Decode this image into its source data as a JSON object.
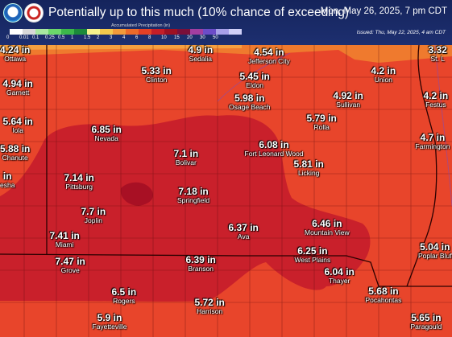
{
  "header": {
    "title": "Potentially up to this much (10% chance of exceeding)",
    "valid": "Mon, May 26, 2025, 7 pm CDT",
    "issued": "Issued: Thu, May 22, 2025, 4 am CDT",
    "logos": [
      "noaa-logo",
      "nws-logo"
    ]
  },
  "legend": {
    "title": "Accumulated Precipitation (in)",
    "colors": [
      "#ffffff",
      "#d8d8d8",
      "#a8e8a0",
      "#6cd86a",
      "#3cb84a",
      "#1c8a3a",
      "#f5f28c",
      "#f3c84c",
      "#f19a3a",
      "#ec6a2a",
      "#e34025",
      "#c41e28",
      "#9e1022",
      "#7a0f3a",
      "#a23ea0",
      "#6c4cc8",
      "#a8a0e8",
      "#d0d0f8"
    ],
    "ticks": [
      "0",
      "0.01",
      "0.1",
      "0.25",
      "0.5",
      "1",
      "1.5",
      "2",
      "3",
      "4",
      "6",
      "8",
      "10",
      "15",
      "20",
      "30",
      "50"
    ]
  },
  "map": {
    "labels": [
      {
        "value": "4.24 in",
        "city": "Ottawa"
      },
      {
        "value": "4.9 in",
        "city": "Sedalia"
      },
      {
        "value": "4.54 in",
        "city": "Jefferson City"
      },
      {
        "value": "3.32",
        "city": "St. L"
      },
      {
        "value": "4.94 in",
        "city": "Garnett"
      },
      {
        "value": "5.33 in",
        "city": "Clinton"
      },
      {
        "value": "5.45 in",
        "city": "Eldon"
      },
      {
        "value": "4.2 in",
        "city": "Union"
      },
      {
        "value": "5.98 in",
        "city": "Osage Beach"
      },
      {
        "value": "4.92 in",
        "city": "Sullivan"
      },
      {
        "value": "4.2 in",
        "city": "Festus"
      },
      {
        "value": "5.64 in",
        "city": "Iola"
      },
      {
        "value": "6.85 in",
        "city": "Nevada"
      },
      {
        "value": "5.79 in",
        "city": "Rolla"
      },
      {
        "value": "4.7 in",
        "city": "Farmington"
      },
      {
        "value": "5.88 in",
        "city": "Chanute"
      },
      {
        "value": "7.1 in",
        "city": "Bolivar"
      },
      {
        "value": "6.08 in",
        "city": "Fort Leonard Wood"
      },
      {
        "value": "5.81 in",
        "city": "Licking"
      },
      {
        "value": "in",
        "city": "esha"
      },
      {
        "value": "7.14 in",
        "city": "Pittsburg"
      },
      {
        "value": "7.18 in",
        "city": "Springfield"
      },
      {
        "value": "7.7 in",
        "city": "Joplin"
      },
      {
        "value": "6.37 in",
        "city": "Ava"
      },
      {
        "value": "6.46 in",
        "city": "Mountain View"
      },
      {
        "value": "7.41 in",
        "city": "Miami"
      },
      {
        "value": "5.04 in",
        "city": "Poplar Bluf"
      },
      {
        "value": "7.47 in",
        "city": "Grove"
      },
      {
        "value": "6.39 in",
        "city": "Branson"
      },
      {
        "value": "6.25 in",
        "city": "West Plains"
      },
      {
        "value": "6.04 in",
        "city": "Thayer"
      },
      {
        "value": "6.5 in",
        "city": "Rogers"
      },
      {
        "value": "5.72 in",
        "city": "Harrison"
      },
      {
        "value": "5.68 in",
        "city": "Pocahontas"
      },
      {
        "value": "5.9 in",
        "city": "Fayetteville"
      },
      {
        "value": "5.65 in",
        "city": "Paragould"
      }
    ]
  }
}
